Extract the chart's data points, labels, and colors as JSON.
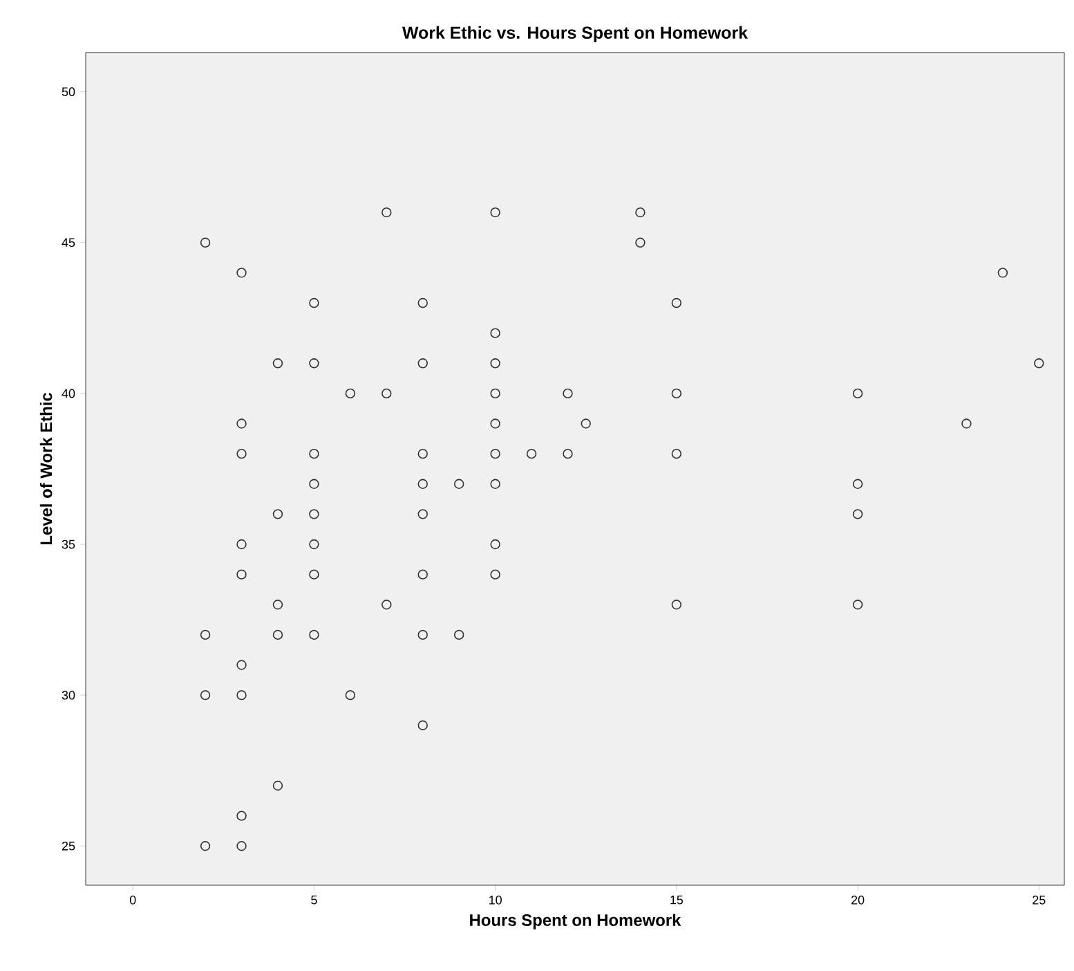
{
  "chart_data": {
    "type": "scatter",
    "title": "Work Ethic vs. Hours Spent on Homework",
    "xlabel": "Hours Spent on Homework",
    "ylabel": "Level of Work Ethic",
    "xlim": [
      -1.3,
      25.7
    ],
    "ylim": [
      23.7,
      51.3
    ],
    "xticks": [
      0,
      5,
      10,
      15,
      20,
      25
    ],
    "yticks": [
      25,
      30,
      35,
      40,
      45,
      50
    ],
    "grid": false,
    "marker": "circle",
    "series": [
      {
        "color": "#333333",
        "x": [
          2,
          3,
          7,
          10,
          14,
          14,
          24,
          25,
          5,
          8,
          15,
          10,
          4,
          5,
          8,
          10,
          6,
          7,
          10,
          12,
          15,
          20,
          3,
          10,
          12.5,
          23,
          3,
          5,
          8,
          10,
          11,
          12,
          15,
          5,
          8,
          9,
          10,
          20,
          4,
          5,
          8,
          20,
          3,
          5,
          10,
          3,
          5,
          8,
          10,
          4,
          7,
          15,
          20,
          2,
          4,
          5,
          8,
          9,
          3,
          2,
          3,
          6,
          8,
          4,
          3,
          2,
          3
        ],
        "values": [
          45,
          44,
          46,
          46,
          46,
          45,
          44,
          41,
          43,
          43,
          43,
          42,
          41,
          41,
          41,
          41,
          40,
          40,
          40,
          40,
          40,
          40,
          39,
          39,
          39,
          39,
          38,
          38,
          38,
          38,
          38,
          38,
          38,
          37,
          37,
          37,
          37,
          37,
          36,
          36,
          36,
          36,
          35,
          35,
          35,
          34,
          34,
          34,
          34,
          33,
          33,
          33,
          33,
          32,
          32,
          32,
          32,
          32,
          31,
          30,
          30,
          30,
          29,
          27,
          26,
          25,
          25
        ]
      }
    ]
  }
}
